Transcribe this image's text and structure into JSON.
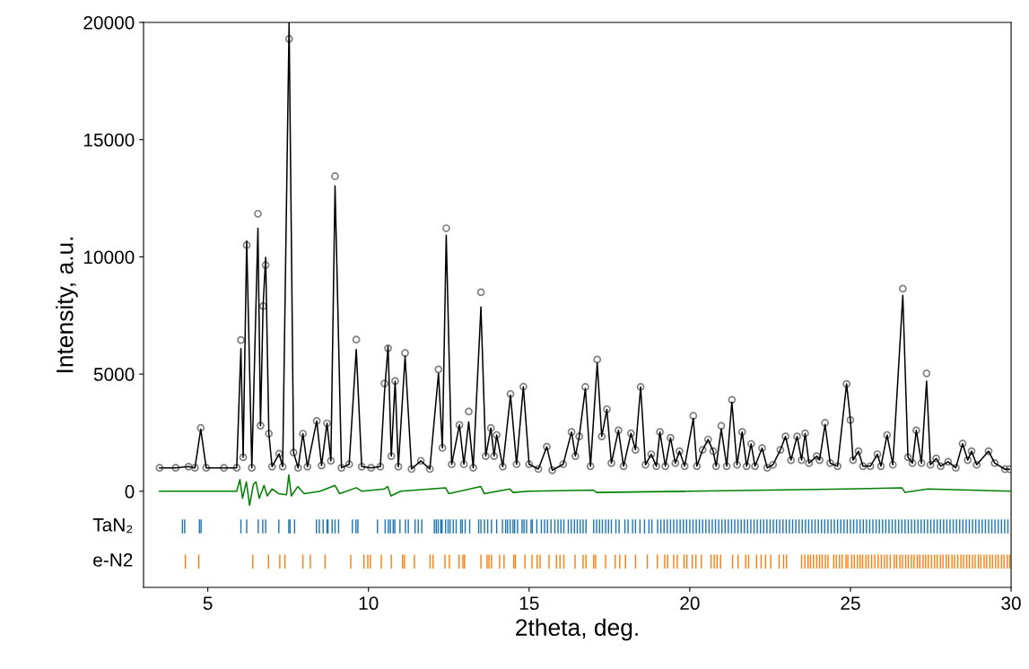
{
  "chart_data": {
    "type": "scatter",
    "xlabel": "2theta, deg.",
    "ylabel": "Intensity, a.u.",
    "xlim": [
      3,
      30
    ],
    "xticks": [
      5,
      10,
      15,
      20,
      25,
      30
    ],
    "ylim": [
      -4100,
      20000
    ],
    "yticks": [
      0,
      5000,
      10000,
      15000,
      20000
    ],
    "x": [
      3.5,
      4.0,
      4.4,
      4.6,
      4.78,
      4.95,
      5.5,
      5.9,
      6.03,
      6.1,
      6.21,
      6.37,
      6.56,
      6.64,
      6.72,
      6.8,
      6.9,
      7.0,
      7.22,
      7.33,
      7.53,
      7.67,
      7.81,
      7.96,
      8.1,
      8.39,
      8.54,
      8.71,
      8.83,
      8.96,
      9.16,
      9.4,
      9.62,
      9.79,
      10.08,
      10.37,
      10.5,
      10.61,
      10.71,
      10.83,
      10.93,
      11.14,
      11.34,
      11.63,
      11.91,
      12.18,
      12.3,
      12.42,
      12.59,
      12.83,
      12.97,
      13.12,
      13.26,
      13.5,
      13.65,
      13.81,
      13.91,
      13.99,
      14.18,
      14.42,
      14.61,
      14.82,
      15.0,
      15.29,
      15.55,
      15.72,
      16.06,
      16.32,
      16.44,
      16.56,
      16.75,
      16.91,
      17.12,
      17.26,
      17.42,
      17.56,
      17.78,
      17.94,
      18.17,
      18.31,
      18.47,
      18.62,
      18.8,
      18.96,
      19.07,
      19.24,
      19.4,
      19.55,
      19.68,
      19.84,
      20.11,
      20.22,
      20.4,
      20.57,
      20.73,
      20.82,
      20.98,
      21.15,
      21.31,
      21.47,
      21.63,
      21.77,
      21.91,
      22.03,
      22.25,
      22.41,
      22.59,
      22.82,
      22.98,
      23.15,
      23.34,
      23.48,
      23.59,
      23.71,
      23.95,
      24.04,
      24.21,
      24.37,
      24.6,
      24.88,
      25.0,
      25.08,
      25.25,
      25.39,
      25.62,
      25.84,
      25.95,
      26.14,
      26.32,
      26.63,
      26.79,
      26.93,
      27.05,
      27.21,
      27.37,
      27.49,
      27.67,
      27.81,
      28.04,
      28.28,
      28.49,
      28.65,
      28.77,
      28.93,
      29.3,
      29.49,
      29.81,
      29.95
    ],
    "series": [
      {
        "marker": "circle",
        "color": "#808080",
        "values": [
          1000,
          1000,
          1050,
          1000,
          2700,
          1000,
          1000,
          1000,
          6450,
          1450,
          10500,
          1000,
          11840,
          2800,
          7900,
          9650,
          2460,
          1050,
          1600,
          1050,
          19300,
          1650,
          1000,
          2460,
          1050,
          3000,
          1100,
          2900,
          1300,
          13440,
          1000,
          1150,
          6470,
          1050,
          1000,
          1050,
          4600,
          6100,
          1500,
          4700,
          1050,
          5900,
          950,
          1300,
          950,
          5200,
          1850,
          11220,
          1150,
          2830,
          1150,
          3400,
          1000,
          8490,
          1500,
          2700,
          1500,
          2400,
          1050,
          4150,
          1150,
          4460,
          1150,
          950,
          1900,
          900,
          1150,
          2530,
          1500,
          2340,
          4450,
          1070,
          5620,
          2340,
          3500,
          1200,
          2600,
          1070,
          2470,
          1770,
          4450,
          1130,
          1580,
          1070,
          2530,
          1070,
          2280,
          1200,
          1710,
          1070,
          3220,
          1070,
          1770,
          2210,
          1710,
          1070,
          2790,
          1070,
          3900,
          1130,
          2530,
          1070,
          2020,
          1070,
          1840,
          1000,
          1130,
          1770,
          2340,
          1330,
          2340,
          1330,
          2470,
          1200,
          1500,
          1330,
          2920,
          1200,
          1070,
          4580,
          3040,
          1330,
          1710,
          1070,
          1070,
          1580,
          1070,
          2400,
          1130,
          8640,
          1450,
          1200,
          2600,
          1200,
          5030,
          1130,
          1400,
          1070,
          1260,
          1000,
          2030,
          1330,
          1710,
          1130,
          1710,
          1200,
          940,
          940
        ]
      },
      {
        "type": "line",
        "marker": "none",
        "color": "#000000",
        "values": [
          1000,
          1000,
          1050,
          1000,
          2650,
          1000,
          1000,
          1000,
          6080,
          1450,
          10670,
          1000,
          11220,
          2800,
          7900,
          9980,
          2460,
          1050,
          1600,
          1050,
          20000,
          1650,
          1000,
          2460,
          1050,
          3000,
          1100,
          2900,
          1300,
          13030,
          1000,
          1150,
          6050,
          1050,
          1000,
          1050,
          4240,
          6180,
          1500,
          4700,
          1050,
          5760,
          950,
          1300,
          950,
          5030,
          1850,
          10920,
          1150,
          2830,
          1150,
          2960,
          1000,
          7860,
          1500,
          2700,
          1500,
          2400,
          1050,
          4100,
          1150,
          4460,
          1150,
          950,
          1900,
          900,
          1150,
          2530,
          1500,
          2340,
          4390,
          1070,
          5470,
          2340,
          3490,
          1200,
          2600,
          1070,
          2470,
          1770,
          4450,
          1130,
          1580,
          1070,
          2530,
          1070,
          2280,
          1200,
          1710,
          1070,
          3110,
          1070,
          1770,
          2210,
          1710,
          1070,
          2660,
          1070,
          3810,
          1130,
          2530,
          1070,
          2020,
          1070,
          1840,
          1000,
          1130,
          1770,
          2340,
          1330,
          2340,
          1330,
          2470,
          1200,
          1500,
          1330,
          2850,
          1200,
          1070,
          4580,
          3040,
          1330,
          1710,
          1070,
          1070,
          1580,
          1070,
          2400,
          1130,
          8360,
          1450,
          1200,
          2600,
          1200,
          4700,
          1130,
          1400,
          1070,
          1260,
          1000,
          2030,
          1330,
          1710,
          1130,
          1710,
          1200,
          940,
          940
        ]
      },
      {
        "type": "line",
        "marker": "none",
        "color": "#008000",
        "x": [
          3.5,
          5.9,
          6.0,
          6.08,
          6.2,
          6.3,
          6.42,
          6.5,
          6.6,
          6.75,
          6.85,
          7.0,
          7.2,
          7.45,
          7.52,
          7.6,
          7.8,
          8.0,
          8.5,
          8.96,
          9.1,
          9.62,
          9.8,
          10.5,
          10.6,
          10.7,
          11.0,
          12.4,
          12.5,
          13.5,
          13.6,
          14.4,
          14.5,
          15.0,
          17.0,
          17.1,
          20.0,
          24.9,
          26.6,
          26.7,
          27.4,
          30.0
        ],
        "values": [
          0,
          0,
          500,
          -300,
          400,
          -600,
          300,
          400,
          -300,
          250,
          -200,
          100,
          -100,
          -150,
          700,
          -200,
          200,
          -100,
          0,
          250,
          -100,
          150,
          0,
          100,
          200,
          -200,
          0,
          150,
          -100,
          200,
          -100,
          100,
          -50,
          0,
          50,
          -50,
          0,
          100,
          150,
          -50,
          100,
          0
        ]
      },
      {
        "type": "bar",
        "name": "TaN₂",
        "color": "#1f77b4",
        "x": [
          4.21,
          4.28,
          4.74,
          4.79,
          6.03,
          6.21,
          6.57,
          6.71,
          6.8,
          7.21,
          7.52,
          7.56,
          7.7,
          8.38,
          8.47,
          8.59,
          8.71,
          8.74,
          8.87,
          8.96,
          9.07,
          9.5,
          9.61,
          9.67,
          10.28,
          10.52,
          10.62,
          10.68,
          10.77,
          10.82,
          10.98,
          11.15,
          11.24,
          11.45,
          11.55,
          11.66,
          12.05,
          12.11,
          12.17,
          12.25,
          12.29,
          12.4,
          12.48,
          12.54,
          12.64,
          12.73,
          12.87,
          12.92,
          13.01,
          13.15,
          13.43,
          13.5,
          13.61,
          13.71,
          13.83,
          13.99,
          14.17,
          14.27,
          14.33,
          14.41,
          14.5,
          14.55,
          14.64,
          14.78,
          14.84,
          14.92,
          15.06,
          15.1,
          15.24,
          15.38,
          15.48,
          15.57,
          15.68,
          15.8,
          15.9,
          15.99,
          16.08,
          16.22,
          16.31,
          16.41,
          16.5,
          16.59,
          16.68,
          16.77,
          17.01,
          17.1,
          17.19,
          17.28,
          17.38,
          17.47,
          17.56,
          17.7,
          17.8,
          17.98,
          18.08,
          18.22,
          18.31,
          18.45,
          18.59,
          18.73,
          18.82,
          19.0,
          19.1,
          19.2,
          19.3,
          19.4,
          19.5,
          19.6,
          19.7,
          19.8,
          19.9,
          20.0,
          20.1,
          20.2,
          20.3,
          20.4,
          20.5,
          20.6,
          20.7,
          20.8,
          20.9,
          21.0,
          21.1,
          21.2,
          21.3,
          21.4,
          21.5,
          21.6,
          21.7,
          21.8,
          21.9,
          22.0,
          22.1,
          22.2,
          22.3,
          22.4,
          22.5,
          22.6,
          22.7,
          22.8,
          22.9,
          23.0,
          23.1,
          23.2,
          23.3,
          23.4,
          23.5,
          23.6,
          23.7,
          23.8,
          23.9,
          24.0,
          24.1,
          24.2,
          24.3,
          24.4,
          24.5,
          24.6,
          24.7,
          24.8,
          24.9,
          25.0,
          25.1,
          25.2,
          25.3,
          25.4,
          25.5,
          25.6,
          25.7,
          25.8,
          25.9,
          26.0,
          26.1,
          26.2,
          26.3,
          26.4,
          26.5,
          26.6,
          26.7,
          26.8,
          26.9,
          27.0,
          27.1,
          27.2,
          27.3,
          27.4,
          27.5,
          27.6,
          27.7,
          27.8,
          27.9,
          28.0,
          28.1,
          28.2,
          28.3,
          28.4,
          28.5,
          28.6,
          28.7,
          28.8,
          28.9,
          29.0,
          29.1,
          29.2,
          29.3,
          29.4,
          29.5,
          29.6,
          29.7,
          29.8,
          29.9
        ],
        "base": [
          -1800,
          -1800,
          -1800,
          -1800,
          -1800,
          -1800,
          -1800,
          -1800,
          -1800,
          -1800,
          -1800,
          -1800,
          -1800,
          -1800,
          -1800,
          -1800,
          -1800,
          -1800,
          -1800,
          -1800,
          -1800,
          -1800,
          -1800,
          -1800,
          -1800,
          -1800,
          -1800,
          -1800,
          -1800,
          -1800,
          -1800,
          -1800,
          -1800,
          -1800,
          -1800,
          -1800,
          -1800,
          -1800,
          -1800,
          -1800,
          -1800,
          -1800,
          -1800,
          -1800,
          -1800,
          -1800,
          -1800,
          -1800,
          -1800,
          -1800,
          -1800,
          -1800,
          -1800,
          -1800,
          -1800,
          -1800,
          -1800,
          -1800,
          -1800,
          -1800,
          -1800,
          -1800,
          -1800,
          -1800,
          -1800,
          -1800,
          -1800,
          -1800,
          -1800,
          -1800,
          -1800,
          -1800,
          -1800,
          -1800,
          -1800,
          -1800,
          -1800,
          -1800,
          -1800,
          -1800,
          -1800,
          -1800,
          -1800,
          -1800,
          -1800,
          -1800,
          -1800,
          -1800,
          -1800,
          -1800,
          -1800,
          -1800,
          -1800,
          -1800,
          -1800,
          -1800,
          -1800,
          -1800,
          -1800,
          -1800,
          -1800,
          -1800,
          -1800,
          -1800,
          -1800,
          -1800,
          -1800,
          -1800,
          -1800,
          -1800,
          -1800,
          -1800,
          -1800,
          -1800,
          -1800,
          -1800,
          -1800,
          -1800,
          -1800,
          -1800,
          -1800,
          -1800,
          -1800,
          -1800,
          -1800,
          -1800,
          -1800,
          -1800,
          -1800,
          -1800,
          -1800,
          -1800,
          -1800,
          -1800,
          -1800,
          -1800,
          -1800,
          -1800,
          -1800,
          -1800,
          -1800,
          -1800,
          -1800,
          -1800,
          -1800,
          -1800,
          -1800,
          -1800,
          -1800,
          -1800,
          -1800,
          -1800,
          -1800,
          -1800,
          -1800,
          -1800,
          -1800,
          -1800,
          -1800,
          -1800,
          -1800,
          -1800,
          -1800,
          -1800,
          -1800,
          -1800,
          -1800,
          -1800,
          -1800,
          -1800,
          -1800,
          -1800,
          -1800,
          -1800,
          -1800,
          -1800,
          -1800,
          -1800,
          -1800,
          -1800,
          -1800,
          -1800,
          -1800,
          -1800,
          -1800,
          -1800,
          -1800,
          -1800,
          -1800,
          -1800,
          -1800,
          -1800,
          -1800,
          -1800,
          -1800,
          -1800,
          -1800,
          -1800,
          -1800,
          -1800,
          -1800,
          -1800,
          -1800,
          -1800,
          -1800,
          -1800,
          -1800,
          -1800,
          -1800,
          -1800,
          -1800
        ],
        "values": [
          600,
          600,
          600,
          600,
          600,
          600,
          600,
          600,
          600,
          600,
          600,
          600,
          600,
          600,
          600,
          600,
          600,
          600,
          600,
          600,
          600,
          600,
          600,
          600,
          600,
          600,
          600,
          600,
          600,
          600,
          600,
          600,
          600,
          600,
          600,
          600,
          600,
          600,
          600,
          600,
          600,
          600,
          600,
          600,
          600,
          600,
          600,
          600,
          600,
          600,
          600,
          600,
          600,
          600,
          600,
          600,
          600,
          600,
          600,
          600,
          600,
          600,
          600,
          600,
          600,
          600,
          600,
          600,
          600,
          600,
          600,
          600,
          600,
          600,
          600,
          600,
          600,
          600,
          600,
          600,
          600,
          600,
          600,
          600,
          600,
          600,
          600,
          600,
          600,
          600,
          600,
          600,
          600,
          600,
          600,
          600,
          600,
          600,
          600,
          600,
          600,
          600,
          600,
          600,
          600,
          600,
          600,
          600,
          600,
          600,
          600,
          600,
          600,
          600,
          600,
          600,
          600,
          600,
          600,
          600,
          600,
          600,
          600,
          600,
          600,
          600,
          600,
          600,
          600,
          600,
          600,
          600,
          600,
          600,
          600,
          600,
          600,
          600,
          600,
          600,
          600,
          600,
          600,
          600,
          600,
          600,
          600,
          600,
          600,
          600,
          600,
          600,
          600,
          600,
          600,
          600,
          600,
          600,
          600,
          600,
          600,
          600,
          600,
          600,
          600,
          600,
          600,
          600,
          600,
          600,
          600,
          600,
          600,
          600,
          600,
          600,
          600,
          600,
          600,
          600,
          600,
          600,
          600,
          600,
          600,
          600,
          600,
          600,
          600,
          600,
          600,
          600,
          600,
          600,
          600,
          600,
          600,
          600,
          600,
          600,
          600,
          600,
          600,
          600,
          600,
          600,
          600,
          600,
          600,
          600,
          600
        ]
      },
      {
        "type": "bar",
        "name": "e-N2",
        "color": "#ff7f0e",
        "x": [
          4.3,
          4.72,
          6.4,
          6.89,
          7.24,
          7.4,
          7.96,
          8.19,
          8.65,
          9.45,
          9.86,
          9.98,
          10.06,
          10.4,
          10.71,
          11.06,
          11.12,
          11.43,
          11.92,
          12.01,
          12.38,
          12.52,
          12.82,
          12.94,
          12.99,
          13.5,
          13.69,
          13.75,
          13.83,
          14.08,
          14.22,
          14.52,
          14.57,
          14.87,
          15.09,
          15.25,
          15.34,
          15.62,
          15.85,
          15.96,
          16.08,
          16.43,
          16.68,
          16.77,
          17.01,
          17.07,
          17.38,
          17.68,
          17.82,
          18.0,
          18.31,
          18.68,
          18.99,
          19.22,
          19.31,
          19.5,
          19.61,
          19.82,
          19.91,
          20.08,
          20.19,
          20.36,
          20.66,
          20.76,
          20.85,
          20.96,
          21.33,
          21.5,
          21.74,
          21.83,
          22.08,
          22.22,
          22.36,
          22.52,
          22.78,
          22.92,
          23.01,
          23.48,
          23.58,
          23.68,
          23.76,
          23.85,
          23.95,
          24.04,
          24.12,
          24.22,
          24.3,
          24.48,
          24.56,
          24.66,
          24.74,
          24.86,
          24.92,
          25.04,
          25.12,
          25.22,
          25.3,
          25.38,
          25.48,
          25.56,
          25.66,
          25.76,
          25.86,
          25.96,
          26.06,
          26.14,
          26.24,
          26.36,
          26.44,
          26.54,
          26.62,
          26.72,
          26.8,
          26.9,
          26.98,
          27.08,
          27.16,
          27.26,
          27.34,
          27.42,
          27.52,
          27.62,
          27.7,
          27.8,
          27.88,
          27.98,
          28.06,
          28.16,
          28.24,
          28.34,
          28.44,
          28.52,
          28.62,
          28.7,
          28.8,
          28.88,
          28.98,
          29.06,
          29.16,
          29.24,
          29.34,
          29.42,
          29.52,
          29.6,
          29.7,
          29.78,
          29.88,
          29.96
        ],
        "base": [
          -3300,
          -3300,
          -3300,
          -3300,
          -3300,
          -3300,
          -3300,
          -3300,
          -3300,
          -3300,
          -3300,
          -3300,
          -3300,
          -3300,
          -3300,
          -3300,
          -3300,
          -3300,
          -3300,
          -3300,
          -3300,
          -3300,
          -3300,
          -3300,
          -3300,
          -3300,
          -3300,
          -3300,
          -3300,
          -3300,
          -3300,
          -3300,
          -3300,
          -3300,
          -3300,
          -3300,
          -3300,
          -3300,
          -3300,
          -3300,
          -3300,
          -3300,
          -3300,
          -3300,
          -3300,
          -3300,
          -3300,
          -3300,
          -3300,
          -3300,
          -3300,
          -3300,
          -3300,
          -3300,
          -3300,
          -3300,
          -3300,
          -3300,
          -3300,
          -3300,
          -3300,
          -3300,
          -3300,
          -3300,
          -3300,
          -3300,
          -3300,
          -3300,
          -3300,
          -3300,
          -3300,
          -3300,
          -3300,
          -3300,
          -3300,
          -3300,
          -3300,
          -3300,
          -3300,
          -3300,
          -3300,
          -3300,
          -3300,
          -3300,
          -3300,
          -3300,
          -3300,
          -3300,
          -3300,
          -3300,
          -3300,
          -3300,
          -3300,
          -3300,
          -3300,
          -3300,
          -3300,
          -3300,
          -3300,
          -3300,
          -3300,
          -3300,
          -3300,
          -3300,
          -3300,
          -3300,
          -3300,
          -3300,
          -3300,
          -3300,
          -3300,
          -3300,
          -3300,
          -3300,
          -3300,
          -3300,
          -3300,
          -3300,
          -3300,
          -3300,
          -3300,
          -3300,
          -3300,
          -3300,
          -3300,
          -3300,
          -3300,
          -3300,
          -3300,
          -3300,
          -3300,
          -3300,
          -3300,
          -3300,
          -3300,
          -3300,
          -3300,
          -3300,
          -3300,
          -3300,
          -3300,
          -3300,
          -3300,
          -3300,
          -3300,
          -3300,
          -3300,
          -3300
        ],
        "values": [
          600,
          600,
          600,
          600,
          600,
          600,
          600,
          600,
          600,
          600,
          600,
          600,
          600,
          600,
          600,
          600,
          600,
          600,
          600,
          600,
          600,
          600,
          600,
          600,
          600,
          600,
          600,
          600,
          600,
          600,
          600,
          600,
          600,
          600,
          600,
          600,
          600,
          600,
          600,
          600,
          600,
          600,
          600,
          600,
          600,
          600,
          600,
          600,
          600,
          600,
          600,
          600,
          600,
          600,
          600,
          600,
          600,
          600,
          600,
          600,
          600,
          600,
          600,
          600,
          600,
          600,
          600,
          600,
          600,
          600,
          600,
          600,
          600,
          600,
          600,
          600,
          600,
          600,
          600,
          600,
          600,
          600,
          600,
          600,
          600,
          600,
          600,
          600,
          600,
          600,
          600,
          600,
          600,
          600,
          600,
          600,
          600,
          600,
          600,
          600,
          600,
          600,
          600,
          600,
          600,
          600,
          600,
          600,
          600,
          600,
          600,
          600,
          600,
          600,
          600,
          600,
          600,
          600,
          600,
          600,
          600,
          600,
          600,
          600,
          600,
          600,
          600,
          600,
          600,
          600,
          600,
          600,
          600,
          600,
          600,
          600,
          600,
          600,
          600,
          600,
          600,
          600,
          600,
          600,
          600,
          600,
          600,
          600
        ]
      }
    ]
  }
}
